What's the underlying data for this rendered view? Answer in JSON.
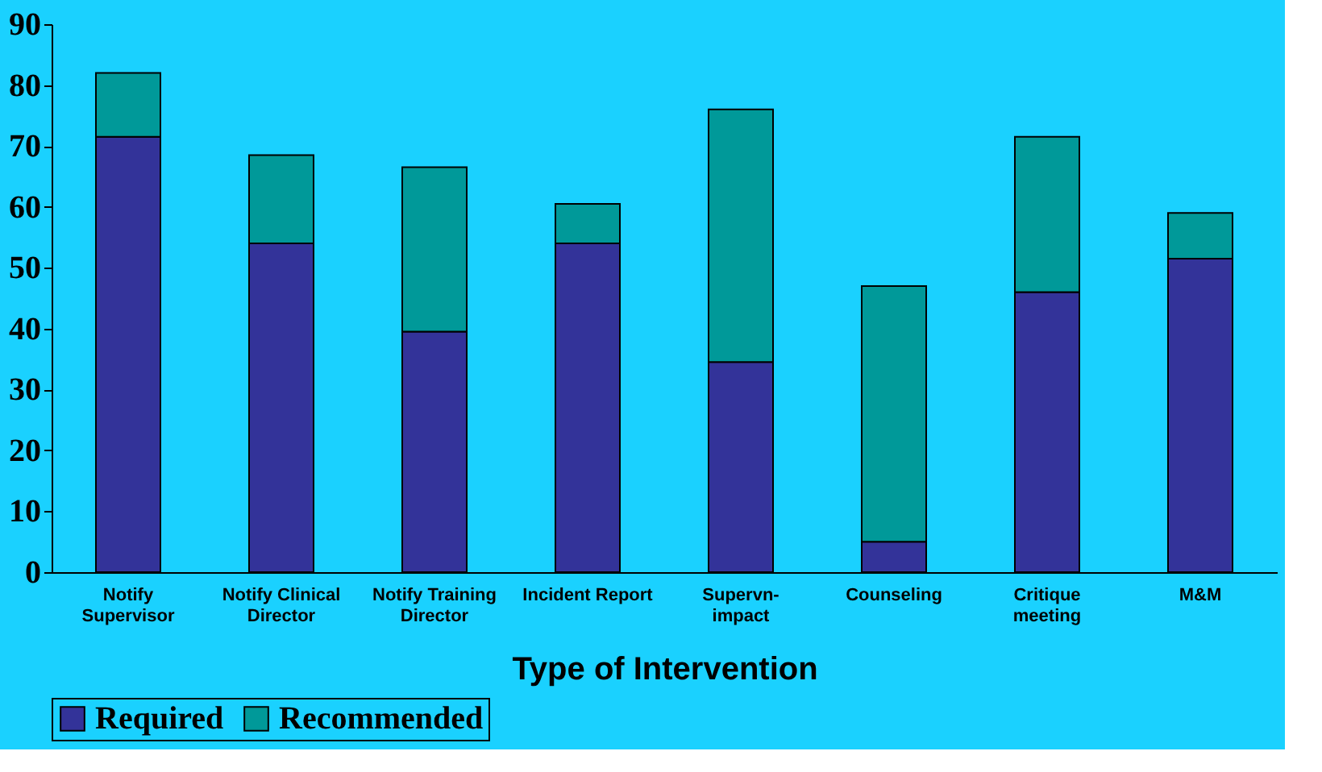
{
  "chart_data": {
    "type": "bar",
    "stacked": true,
    "xlabel": "Type of Intervention",
    "categories": [
      "Notify Supervisor",
      "Notify Clinical Director",
      "Notify Training Director",
      "Incident Report",
      "Supervn-impact",
      "Counseling",
      "Critique meeting",
      "M&M"
    ],
    "series": [
      {
        "name": "Required",
        "color": "#333399",
        "values": [
          71.5,
          54,
          39.5,
          54,
          34.5,
          5,
          46,
          51.5
        ]
      },
      {
        "name": "Recommended",
        "color": "#009999",
        "values": [
          10.5,
          14.5,
          27,
          6.5,
          41.5,
          42,
          25.5,
          7.5
        ]
      }
    ],
    "ylim": [
      0,
      90
    ],
    "yticks": [
      0,
      10,
      20,
      30,
      40,
      50,
      60,
      70,
      80,
      90
    ],
    "grid": false,
    "legend": "bottom"
  }
}
